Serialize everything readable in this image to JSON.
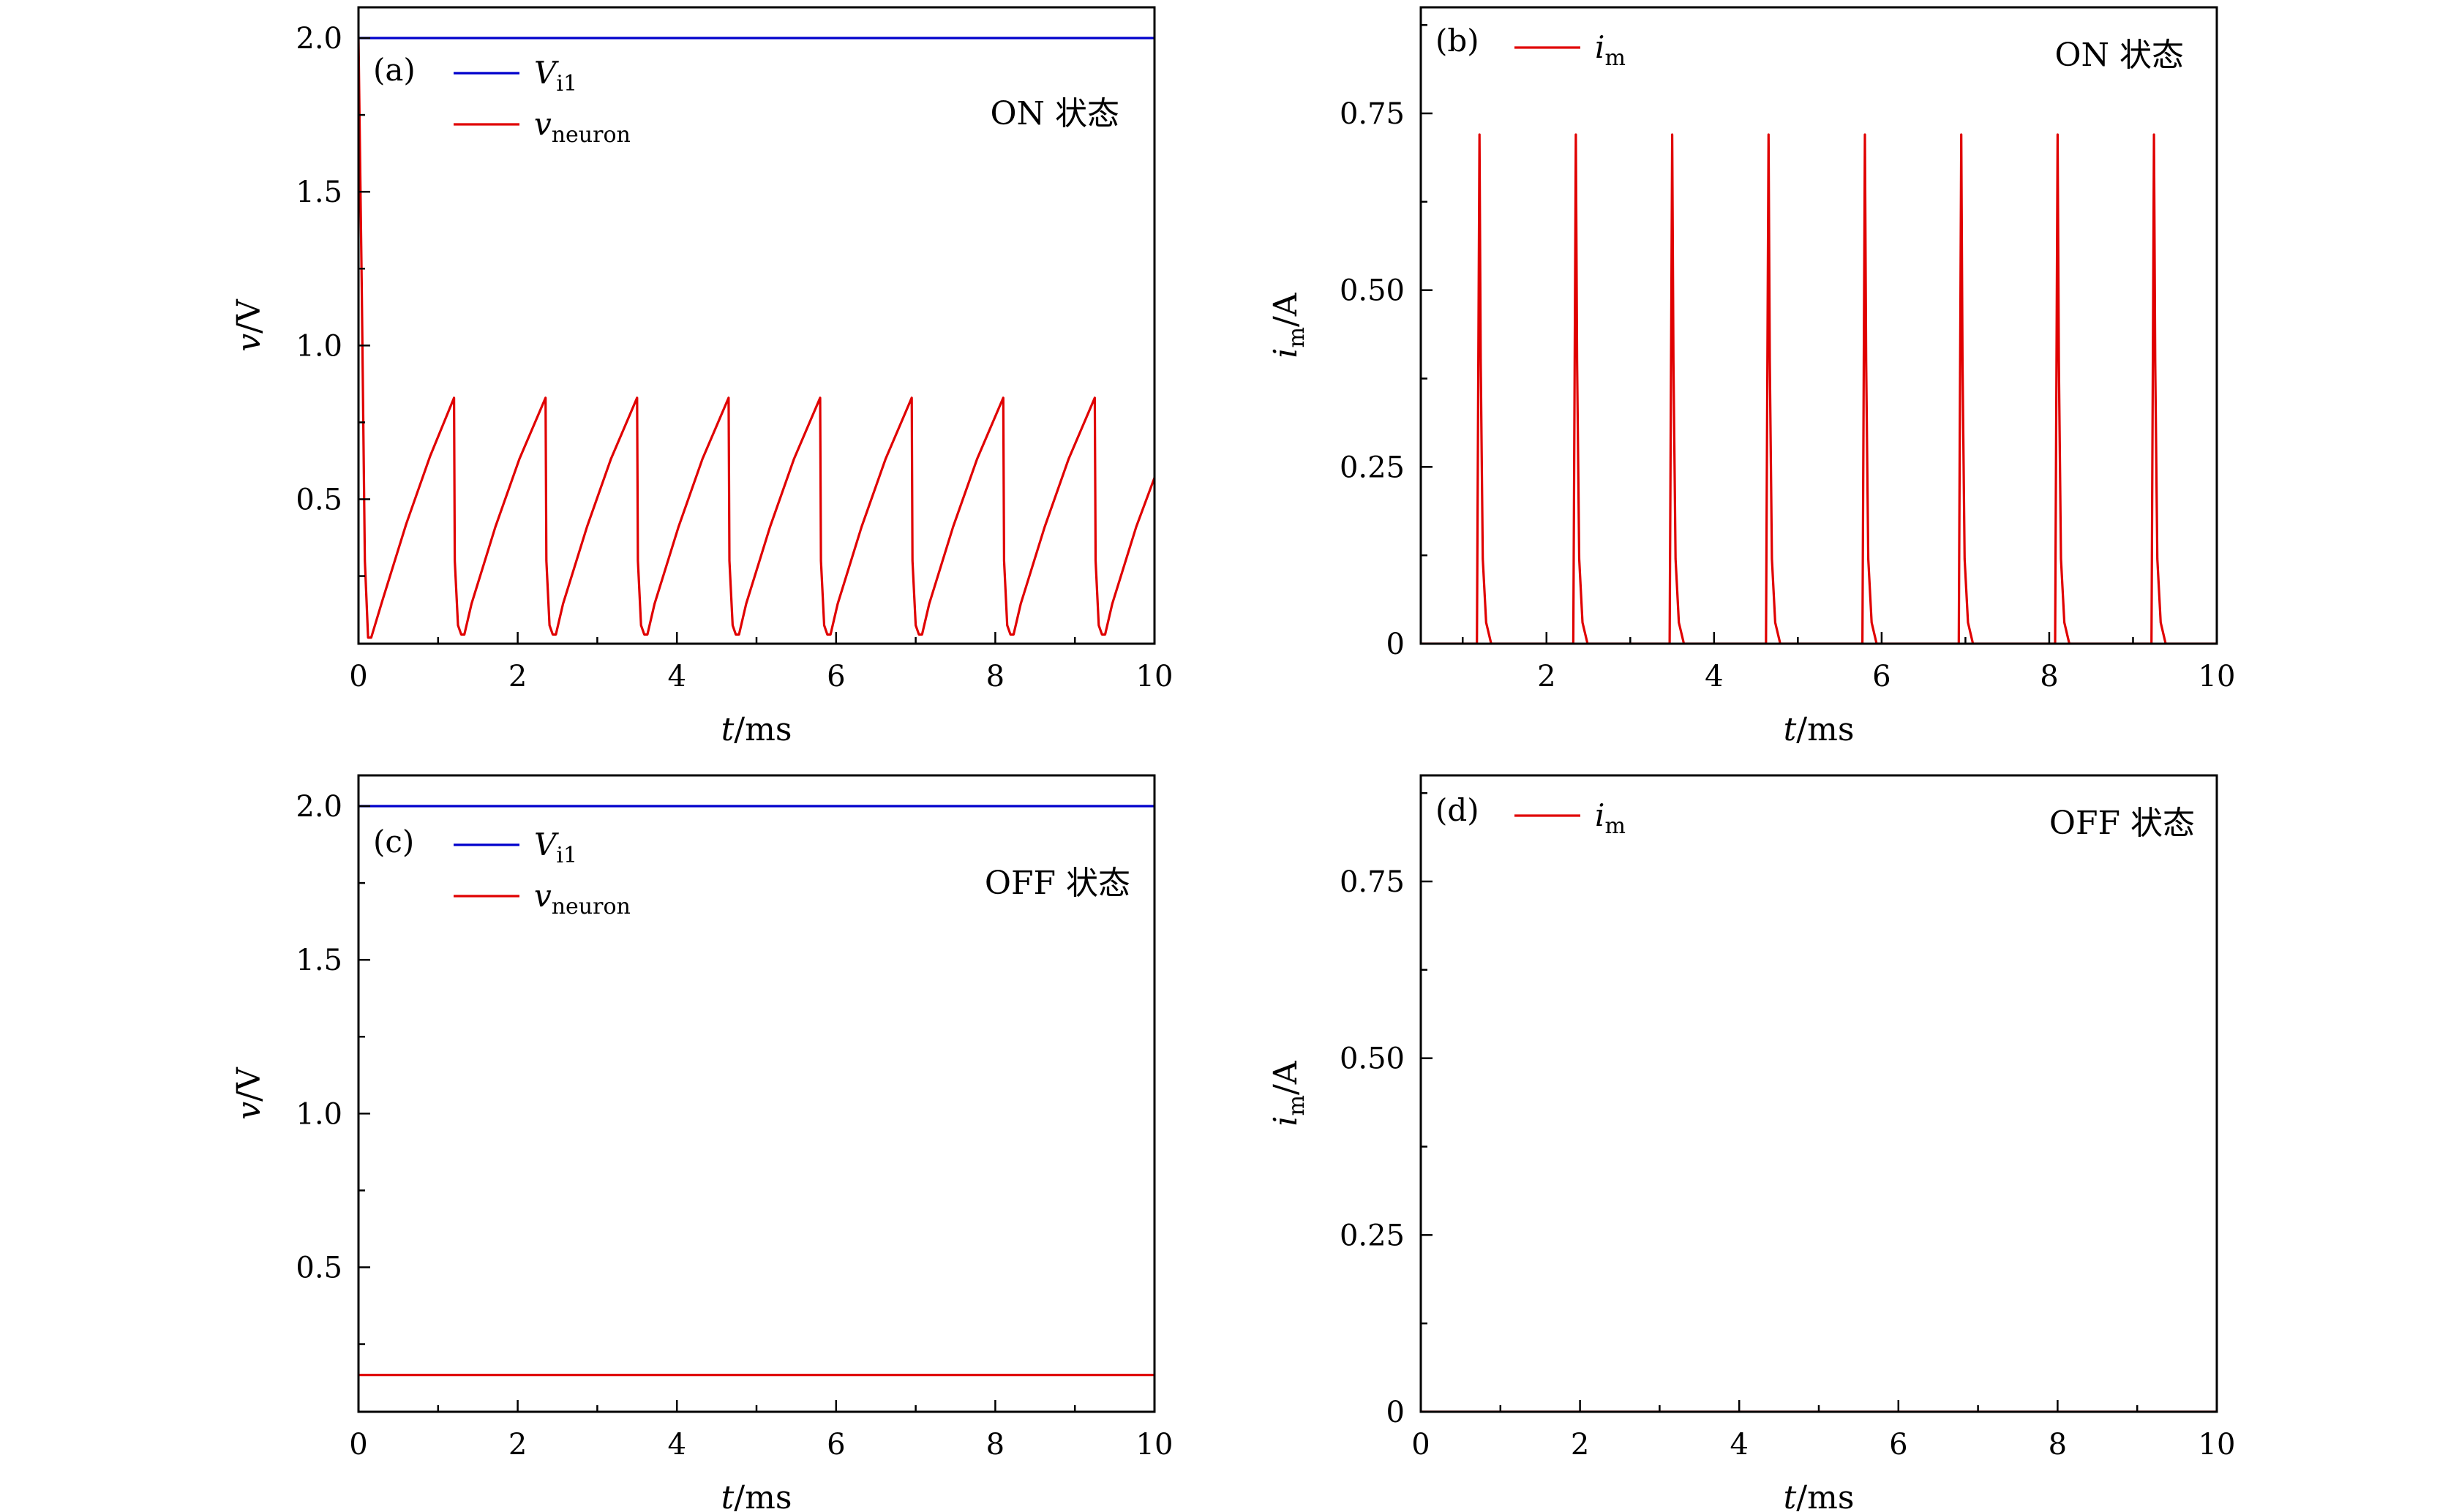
{
  "colors": {
    "vi1": "#0000cc",
    "neuron": "#e00000",
    "axis": "#000000"
  },
  "chart_data": [
    {
      "id": "a",
      "type": "line",
      "panel_label": "(a)",
      "state_label": "ON 状态",
      "xlabel": "t/ms",
      "ylabel": "v/V",
      "xlim": [
        0,
        10
      ],
      "ylim": [
        0.03,
        2.1
      ],
      "xticks": [
        {
          "value": 0,
          "label": "0"
        },
        {
          "value": 2,
          "label": "2"
        },
        {
          "value": 4,
          "label": "4"
        },
        {
          "value": 6,
          "label": "6"
        },
        {
          "value": 8,
          "label": "8"
        },
        {
          "value": 10,
          "label": "10"
        }
      ],
      "yticks": [
        {
          "value": 0.5,
          "label": "0.5"
        },
        {
          "value": 1.0,
          "label": "1.0"
        },
        {
          "value": 1.5,
          "label": "1.5"
        },
        {
          "value": 2.0,
          "label": "2.0"
        }
      ],
      "legend_position": "top-left",
      "series": [
        {
          "name": "V_i1",
          "legend_main": "V",
          "legend_sub": "i1",
          "color": "#0000cc",
          "points": [
            [
              0,
              2.0
            ],
            [
              10,
              2.0
            ]
          ]
        },
        {
          "name": "v_neuron",
          "legend_main": "v",
          "legend_sub": "neuron",
          "color": "#e00000",
          "points": [
            [
              0,
              2.0
            ],
            [
              0.04,
              1.2
            ],
            [
              0.08,
              0.3
            ],
            [
              0.12,
              0.05
            ],
            [
              0.16,
              0.05
            ],
            [
              0.3,
              0.17
            ],
            [
              0.6,
              0.42
            ],
            [
              0.9,
              0.64
            ],
            [
              1.2,
              0.83
            ],
            [
              1.21,
              0.3
            ],
            [
              1.25,
              0.09
            ],
            [
              1.29,
              0.06
            ],
            [
              1.33,
              0.06
            ],
            [
              1.42,
              0.16
            ],
            [
              1.72,
              0.41
            ],
            [
              2.02,
              0.63
            ],
            [
              2.35,
              0.83
            ],
            [
              2.36,
              0.3
            ],
            [
              2.4,
              0.09
            ],
            [
              2.44,
              0.06
            ],
            [
              2.48,
              0.06
            ],
            [
              2.57,
              0.16
            ],
            [
              2.87,
              0.41
            ],
            [
              3.17,
              0.63
            ],
            [
              3.5,
              0.83
            ],
            [
              3.51,
              0.3
            ],
            [
              3.55,
              0.09
            ],
            [
              3.59,
              0.06
            ],
            [
              3.63,
              0.06
            ],
            [
              3.72,
              0.16
            ],
            [
              4.02,
              0.41
            ],
            [
              4.32,
              0.63
            ],
            [
              4.65,
              0.83
            ],
            [
              4.66,
              0.3
            ],
            [
              4.7,
              0.09
            ],
            [
              4.74,
              0.06
            ],
            [
              4.78,
              0.06
            ],
            [
              4.87,
              0.16
            ],
            [
              5.17,
              0.41
            ],
            [
              5.47,
              0.63
            ],
            [
              5.8,
              0.83
            ],
            [
              5.81,
              0.3
            ],
            [
              5.85,
              0.09
            ],
            [
              5.89,
              0.06
            ],
            [
              5.93,
              0.06
            ],
            [
              6.02,
              0.16
            ],
            [
              6.32,
              0.41
            ],
            [
              6.62,
              0.63
            ],
            [
              6.95,
              0.83
            ],
            [
              6.96,
              0.3
            ],
            [
              7.0,
              0.09
            ],
            [
              7.04,
              0.06
            ],
            [
              7.08,
              0.06
            ],
            [
              7.17,
              0.16
            ],
            [
              7.47,
              0.41
            ],
            [
              7.77,
              0.63
            ],
            [
              8.1,
              0.83
            ],
            [
              8.11,
              0.3
            ],
            [
              8.15,
              0.09
            ],
            [
              8.19,
              0.06
            ],
            [
              8.23,
              0.06
            ],
            [
              8.32,
              0.16
            ],
            [
              8.62,
              0.41
            ],
            [
              8.92,
              0.63
            ],
            [
              9.25,
              0.83
            ],
            [
              9.26,
              0.3
            ],
            [
              9.3,
              0.09
            ],
            [
              9.34,
              0.06
            ],
            [
              9.38,
              0.06
            ],
            [
              9.47,
              0.16
            ],
            [
              9.77,
              0.41
            ],
            [
              10.0,
              0.57
            ]
          ]
        }
      ]
    },
    {
      "id": "b",
      "type": "line",
      "panel_label": "(b)",
      "state_label": "ON 状态",
      "xlabel": "t/ms",
      "ylabel": "i_m/A",
      "ylabel_main": "i",
      "ylabel_sub": "m",
      "ylabel_unit": "/A",
      "xlim": [
        0.5,
        10
      ],
      "ylim": [
        0,
        0.9
      ],
      "xticks": [
        {
          "value": 2,
          "label": "2"
        },
        {
          "value": 4,
          "label": "4"
        },
        {
          "value": 6,
          "label": "6"
        },
        {
          "value": 8,
          "label": "8"
        },
        {
          "value": 10,
          "label": "10"
        }
      ],
      "yticks": [
        {
          "value": 0,
          "label": "0"
        },
        {
          "value": 0.25,
          "label": "0.25"
        },
        {
          "value": 0.5,
          "label": "0.50"
        },
        {
          "value": 0.75,
          "label": "0.75"
        }
      ],
      "legend_position": "top-left",
      "series": [
        {
          "name": "i_m",
          "legend_main": "i",
          "legend_sub": "m",
          "color": "#e00000",
          "spike_peak": 0.72,
          "spike_times": [
            1.2,
            2.35,
            3.5,
            4.65,
            5.8,
            6.95,
            8.1,
            9.25
          ]
        }
      ]
    },
    {
      "id": "c",
      "type": "line",
      "panel_label": "(c)",
      "state_label": "OFF 状态",
      "xlabel": "t/ms",
      "ylabel": "v/V",
      "xlim": [
        0,
        10
      ],
      "ylim": [
        0.03,
        2.1
      ],
      "xticks": [
        {
          "value": 0,
          "label": "0"
        },
        {
          "value": 2,
          "label": "2"
        },
        {
          "value": 4,
          "label": "4"
        },
        {
          "value": 6,
          "label": "6"
        },
        {
          "value": 8,
          "label": "8"
        },
        {
          "value": 10,
          "label": "10"
        }
      ],
      "yticks": [
        {
          "value": 0.5,
          "label": "0.5"
        },
        {
          "value": 1.0,
          "label": "1.0"
        },
        {
          "value": 1.5,
          "label": "1.5"
        },
        {
          "value": 2.0,
          "label": "2.0"
        }
      ],
      "legend_position": "top-left",
      "series": [
        {
          "name": "V_i1",
          "legend_main": "V",
          "legend_sub": "i1",
          "color": "#0000cc",
          "points": [
            [
              0,
              2.0
            ],
            [
              10,
              2.0
            ]
          ]
        },
        {
          "name": "v_neuron",
          "legend_main": "v",
          "legend_sub": "neuron",
          "color": "#e00000",
          "points": [
            [
              0,
              0.15
            ],
            [
              10,
              0.15
            ]
          ]
        }
      ]
    },
    {
      "id": "d",
      "type": "line",
      "panel_label": "(d)",
      "state_label": "OFF 状态",
      "xlabel": "t/ms",
      "ylabel": "i_m/A",
      "ylabel_main": "i",
      "ylabel_sub": "m",
      "ylabel_unit": "/A",
      "xlim": [
        0,
        10
      ],
      "ylim": [
        0,
        0.9
      ],
      "xticks": [
        {
          "value": 0,
          "label": "0"
        },
        {
          "value": 2,
          "label": "2"
        },
        {
          "value": 4,
          "label": "4"
        },
        {
          "value": 6,
          "label": "6"
        },
        {
          "value": 8,
          "label": "8"
        },
        {
          "value": 10,
          "label": "10"
        }
      ],
      "yticks": [
        {
          "value": 0,
          "label": "0"
        },
        {
          "value": 0.25,
          "label": "0.25"
        },
        {
          "value": 0.5,
          "label": "0.50"
        },
        {
          "value": 0.75,
          "label": "0.75"
        }
      ],
      "legend_position": "top-left",
      "series": [
        {
          "name": "i_m",
          "legend_main": "i",
          "legend_sub": "m",
          "color": "#e00000",
          "points": [
            [
              0,
              0
            ],
            [
              10,
              0
            ]
          ]
        }
      ]
    }
  ]
}
